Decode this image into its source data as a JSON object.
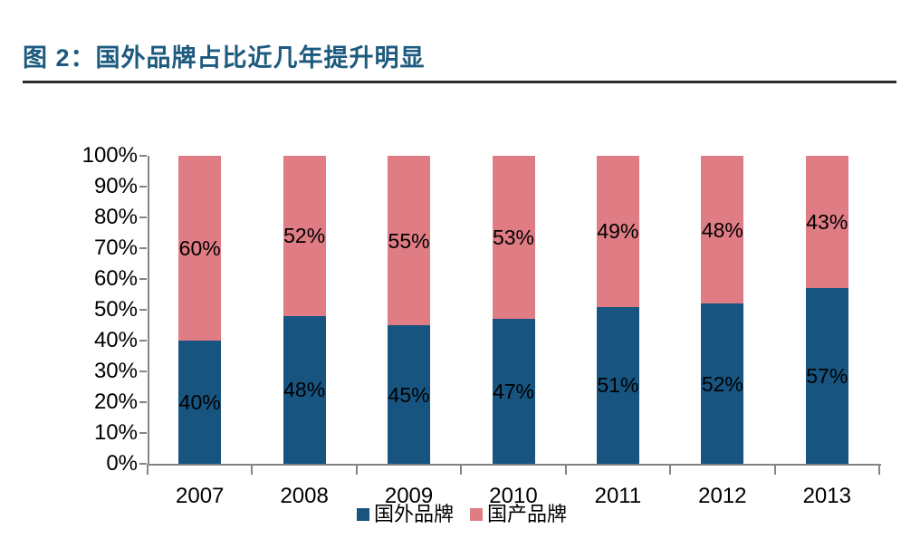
{
  "page": {
    "title": "图 2：国外品牌占比近几年提升明显",
    "title_color": "#1d5a7f",
    "rule_color": "#2b2b2b"
  },
  "chart_data": {
    "type": "bar",
    "stacked": true,
    "title": "图 2：国外品牌占比近几年提升明显",
    "categories": [
      "2007",
      "2008",
      "2009",
      "2010",
      "2011",
      "2012",
      "2013"
    ],
    "series": [
      {
        "name": "国外品牌",
        "color": "#175480",
        "values": [
          40,
          48,
          45,
          47,
          51,
          52,
          57
        ]
      },
      {
        "name": "国产品牌",
        "color": "#df7c84",
        "values": [
          60,
          52,
          55,
          53,
          49,
          48,
          43
        ]
      }
    ],
    "value_suffix": "%",
    "bar_labels": true,
    "y_axis": {
      "min": 0,
      "max": 100,
      "step": 10,
      "tick_labels": [
        "0%",
        "10%",
        "20%",
        "30%",
        "40%",
        "50%",
        "60%",
        "70%",
        "80%",
        "90%",
        "100%"
      ]
    },
    "xlabel": "",
    "ylabel": "",
    "grid": false,
    "axis_color": "#848484",
    "text_color": "#000000",
    "legend_position": "bottom"
  }
}
